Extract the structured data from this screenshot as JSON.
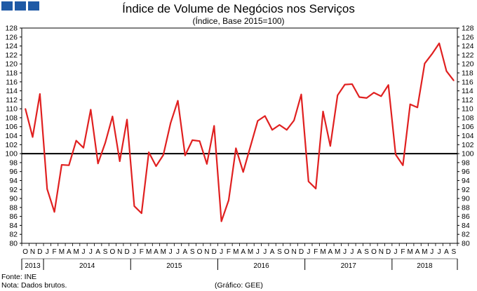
{
  "brand": {
    "logo": "gee-logo-squares",
    "color": "#1f5aa6"
  },
  "chart_data": {
    "type": "line",
    "title": "Índice de Volume de Negócios nos Serviços",
    "subtitle": "(Índice, Base 2015=100)",
    "ylim": [
      80,
      128
    ],
    "ytick_step": 2,
    "reference_line": 100,
    "series": [
      {
        "name": "Índice de Volume de Negócios nos Serviços",
        "color": "#e02020",
        "values": [
          110.0,
          103.7,
          113.3,
          92.1,
          87.0,
          97.5,
          97.4,
          102.9,
          101.3,
          109.8,
          97.8,
          102.4,
          108.3,
          98.3,
          107.6,
          88.3,
          86.7,
          100.3,
          97.2,
          99.7,
          106.8,
          111.8,
          99.6,
          103.0,
          102.8,
          97.7,
          106.2,
          84.9,
          89.6,
          101.2,
          95.9,
          101.6,
          107.3,
          108.4,
          105.3,
          106.4,
          105.3,
          107.4,
          113.2,
          93.8,
          92.2,
          109.4,
          101.7,
          113.0,
          115.4,
          115.5,
          112.6,
          112.4,
          113.6,
          112.8,
          115.3,
          99.8,
          97.4,
          111.0,
          110.3,
          120.1,
          122.2,
          124.6,
          118.4,
          116.3
        ]
      }
    ],
    "month_labels": [
      "O",
      "N",
      "D",
      "J",
      "F",
      "M",
      "A",
      "M",
      "J",
      "J",
      "A",
      "S",
      "O",
      "N",
      "D",
      "J",
      "F",
      "M",
      "A",
      "M",
      "J",
      "J",
      "A",
      "S",
      "O",
      "N",
      "D",
      "J",
      "F",
      "M",
      "A",
      "M",
      "J",
      "J",
      "A",
      "S",
      "O",
      "N",
      "D",
      "J",
      "F",
      "M",
      "A",
      "M",
      "J",
      "J",
      "A",
      "S",
      "O",
      "N",
      "D",
      "J",
      "F",
      "M",
      "A",
      "M",
      "J",
      "J",
      "A",
      "S"
    ],
    "year_labels": [
      {
        "label": "2013",
        "start": 0,
        "end": 2
      },
      {
        "label": "2014",
        "start": 3,
        "end": 14
      },
      {
        "label": "2015",
        "start": 15,
        "end": 26
      },
      {
        "label": "2016",
        "start": 27,
        "end": 38
      },
      {
        "label": "2017",
        "start": 39,
        "end": 50
      },
      {
        "label": "2018",
        "start": 51,
        "end": 59
      }
    ]
  },
  "footer": {
    "source": "Fonte: INE",
    "note": "Nota: Dados brutos.",
    "credit": "(Gráfico: GEE)"
  }
}
